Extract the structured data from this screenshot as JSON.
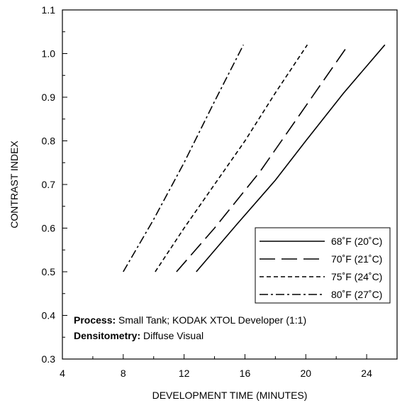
{
  "chart_data": {
    "type": "line",
    "xlabel": "DEVELOPMENT TIME (MINUTES)",
    "ylabel": "CONTRAST INDEX",
    "xlim": [
      4,
      26
    ],
    "ylim": [
      0.3,
      1.1
    ],
    "x_ticks": [
      "4",
      "8",
      "12",
      "16",
      "20",
      "24"
    ],
    "y_ticks": [
      "0.3",
      "0.4",
      "0.5",
      "0.6",
      "0.7",
      "0.8",
      "0.9",
      "1.0",
      "1.1"
    ],
    "grid": false,
    "legend_position": "lower-right",
    "series": [
      {
        "name": "68˚F (20˚C)",
        "dash": "solid",
        "x": [
          12.8,
          15.5,
          18.0,
          20.0,
          22.5,
          25.2
        ],
        "y": [
          0.5,
          0.61,
          0.71,
          0.8,
          0.91,
          1.02
        ]
      },
      {
        "name": "70˚F (21˚C)",
        "dash": "long-dash",
        "x": [
          11.5,
          14.0,
          17.0,
          20.0,
          22.8
        ],
        "y": [
          0.5,
          0.6,
          0.73,
          0.88,
          1.02
        ]
      },
      {
        "name": "75˚F (24˚C)",
        "dash": "short-dash",
        "x": [
          10.1,
          12.0,
          14.0,
          16.0,
          18.0,
          20.1
        ],
        "y": [
          0.5,
          0.6,
          0.7,
          0.8,
          0.91,
          1.02
        ]
      },
      {
        "name": "80˚F (27˚C)",
        "dash": "dash-dot",
        "x": [
          8.0,
          10.0,
          12.0,
          14.0,
          15.9
        ],
        "y": [
          0.5,
          0.62,
          0.75,
          0.89,
          1.02
        ]
      }
    ],
    "annotations": [
      {
        "label": "Process:",
        "text": " Small Tank; KODAK XTOL Developer (1:1)"
      },
      {
        "label": "Densitometry:",
        "text": " Diffuse Visual"
      }
    ]
  }
}
